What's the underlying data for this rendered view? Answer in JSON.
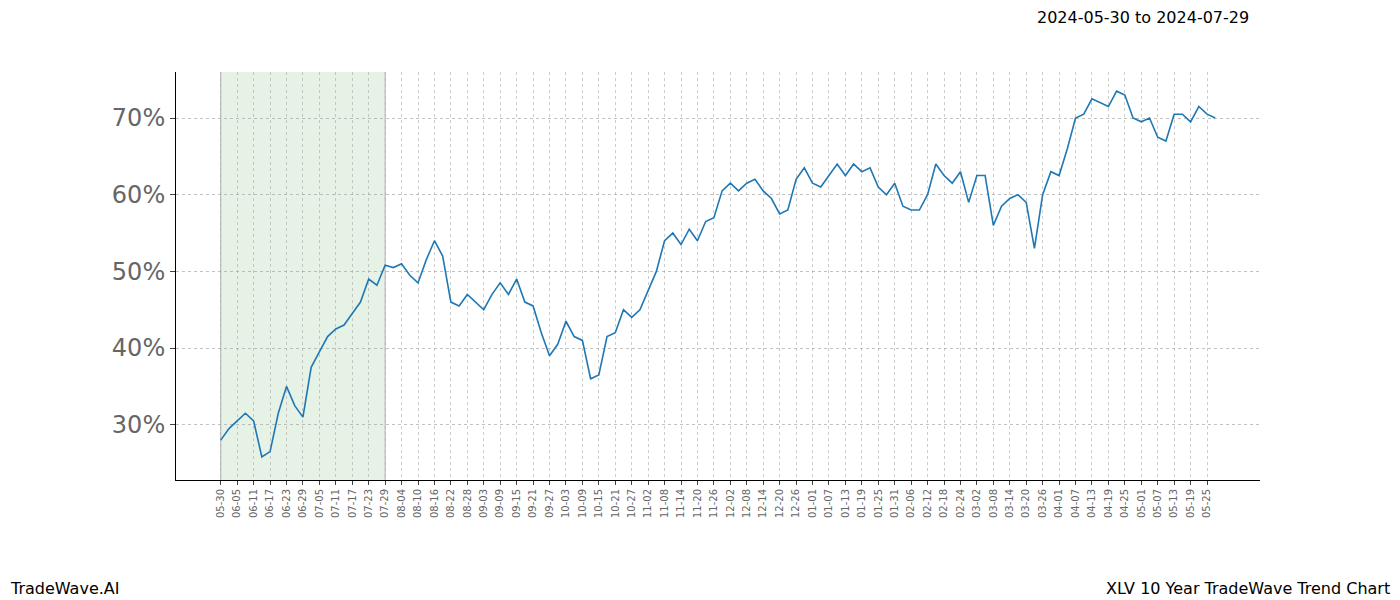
{
  "chart_data": {
    "type": "line",
    "title": "2024-05-30 to 2024-07-29",
    "annotations": [
      "TradeWave.AI",
      "XLV 10 Year TradeWave Trend Chart"
    ],
    "categories": [
      "05-30",
      null,
      "06-05",
      null,
      "06-11",
      null,
      "06-17",
      null,
      "06-23",
      null,
      "06-29",
      null,
      "07-05",
      null,
      "07-11",
      null,
      "07-17",
      null,
      "07-23",
      null,
      "07-29",
      null,
      "08-04",
      null,
      "08-10",
      null,
      "08-16",
      null,
      "08-22",
      null,
      "08-28",
      null,
      "09-03",
      null,
      "09-09",
      null,
      "09-15",
      null,
      "09-21",
      null,
      "09-27",
      null,
      "10-03",
      null,
      "10-09",
      null,
      "10-15",
      null,
      "10-21",
      null,
      "10-27",
      null,
      "11-02",
      null,
      "11-08",
      null,
      "11-14",
      null,
      "11-20",
      null,
      "11-26",
      null,
      "12-02",
      null,
      "12-08",
      null,
      "12-14",
      null,
      "12-20",
      null,
      "12-26",
      null,
      "01-01",
      null,
      "01-07",
      null,
      "01-13",
      null,
      "01-19",
      null,
      "01-25",
      null,
      "01-31",
      null,
      "02-06",
      null,
      "02-12",
      null,
      "02-18",
      null,
      "02-24",
      null,
      "03-02",
      null,
      "03-08",
      null,
      "03-14",
      null,
      "03-20",
      null,
      "03-26",
      null,
      "04-01",
      null,
      "04-07",
      null,
      "04-13",
      null,
      "04-19",
      null,
      "04-25",
      null,
      "05-01",
      null,
      "05-07",
      null,
      "05-13",
      null,
      "05-19",
      null,
      "05-25",
      null
    ],
    "values": [
      28.0,
      29.5,
      30.5,
      31.5,
      30.5,
      25.8,
      26.5,
      31.5,
      35.0,
      32.5,
      31.0,
      37.5,
      39.5,
      41.5,
      42.5,
      43.0,
      44.5,
      46.0,
      49.0,
      48.2,
      50.8,
      50.5,
      51.0,
      49.5,
      48.5,
      51.5,
      54.0,
      52.0,
      46.0,
      45.5,
      47.0,
      46.0,
      45.0,
      47.0,
      48.5,
      47.0,
      49.0,
      46.0,
      45.5,
      42.0,
      39.0,
      40.5,
      43.5,
      41.5,
      41.0,
      36.0,
      36.5,
      41.5,
      42.0,
      45.0,
      44.0,
      45.0,
      47.5,
      50.0,
      54.0,
      55.0,
      53.5,
      55.5,
      54.0,
      56.5,
      57.0,
      60.5,
      61.5,
      60.5,
      61.5,
      62.0,
      60.5,
      59.5,
      57.5,
      58.0,
      62.0,
      63.5,
      61.5,
      61.0,
      62.5,
      64.0,
      62.5,
      64.0,
      63.0,
      63.5,
      61.0,
      60.0,
      61.5,
      58.5,
      58.0,
      58.0,
      60.0,
      64.0,
      62.5,
      61.5,
      63.0,
      59.0,
      62.5,
      62.5,
      56.0,
      58.5,
      59.5,
      60.0,
      59.0,
      53.0,
      60.0,
      63.0,
      62.5,
      66.0,
      70.0,
      70.5,
      72.5,
      72.0,
      71.5,
      73.5,
      73.0,
      70.0,
      69.5,
      70.0,
      67.5,
      67.0,
      70.5,
      70.5,
      69.5,
      71.5,
      70.5,
      70.0
    ],
    "color": "#1f77b4",
    "highlight": {
      "from": "05-30",
      "to": "07-29",
      "color": "#e6f2e6"
    },
    "ylim": [
      22.8,
      76.0
    ],
    "yticks": [
      {
        "value": 30,
        "label": "30%"
      },
      {
        "value": 40,
        "label": "40%"
      },
      {
        "value": 50,
        "label": "50%"
      },
      {
        "value": 60,
        "label": "60%"
      },
      {
        "value": 70,
        "label": "70%"
      }
    ],
    "grid": true
  }
}
